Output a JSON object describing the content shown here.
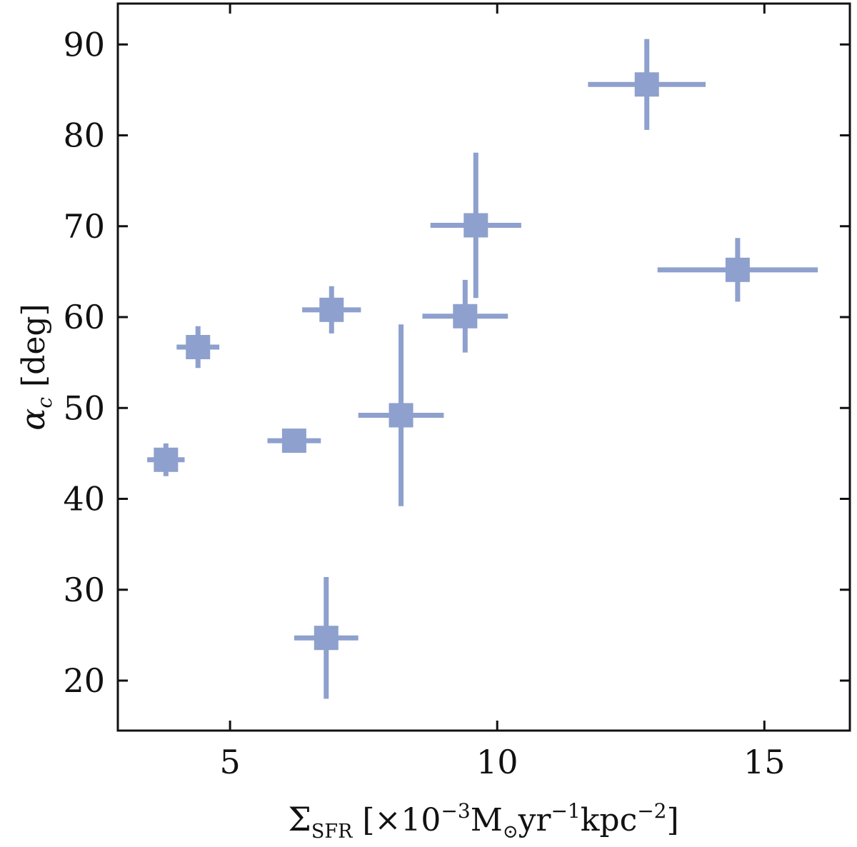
{
  "chart_data": {
    "type": "scatter",
    "title": "",
    "xlabel": {
      "main": "Σ",
      "sub": "SFR",
      "pre": " [×10",
      "sup1": "−3",
      "mid1": "M",
      "sunsub": "⊙",
      "mid2": "yr",
      "sup2": "−1",
      "mid3": "kpc",
      "sup3": "−2",
      "end": "]"
    },
    "ylabel": {
      "main": "α",
      "sub": "c",
      "end": " [deg]"
    },
    "xlim": [
      2.9,
      16.6
    ],
    "ylim": [
      14.5,
      94.5
    ],
    "xticks": [
      5,
      10,
      15
    ],
    "yticks": [
      20,
      30,
      40,
      50,
      60,
      70,
      80,
      90
    ],
    "grid": false,
    "marker_color": "#8ea0cd",
    "points": [
      {
        "x": 3.8,
        "y": 44.3,
        "xerr": 0.35,
        "yerr": 1.8
      },
      {
        "x": 4.4,
        "y": 56.7,
        "xerr": 0.4,
        "yerr": 2.3
      },
      {
        "x": 6.2,
        "y": 46.4,
        "xerr": 0.5,
        "yerr": 1.0
      },
      {
        "x": 6.8,
        "y": 24.7,
        "xerr": 0.6,
        "yerr": 6.7
      },
      {
        "x": 6.9,
        "y": 60.8,
        "xerr": 0.55,
        "yerr": 2.6
      },
      {
        "x": 8.2,
        "y": 49.2,
        "xerr": 0.8,
        "yerr": 10.0
      },
      {
        "x": 9.4,
        "y": 60.1,
        "xerr": 0.8,
        "yerr": 4.0
      },
      {
        "x": 9.6,
        "y": 70.1,
        "xerr": 0.85,
        "yerr": 8.0
      },
      {
        "x": 12.8,
        "y": 85.6,
        "xerr": 1.1,
        "yerr": 5.0
      },
      {
        "x": 14.5,
        "y": 65.2,
        "xerr": 1.5,
        "yerr": 3.5
      }
    ]
  }
}
